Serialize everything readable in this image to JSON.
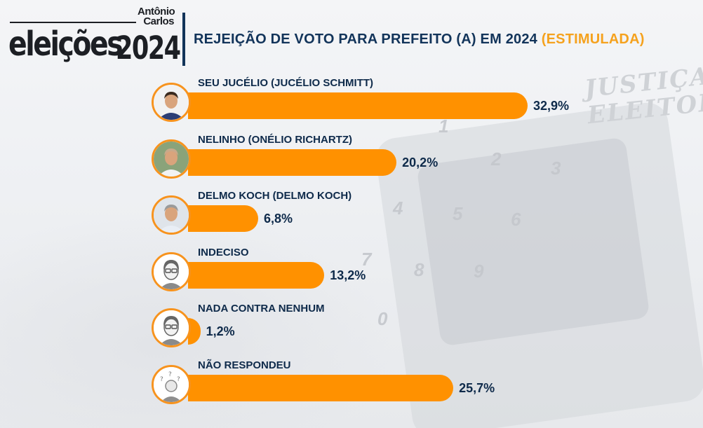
{
  "header": {
    "logo_word": "eleições",
    "logo_year": "2024",
    "logo_author": "Antônio Carlos",
    "title": "REJEIÇÃO DE VOTO PARA PREFEITO (A) EM 2024",
    "title_accent": "(ESTIMULADA)"
  },
  "background_sign": "JUSTIÇA ELEITORAL",
  "background_digits": [
    "1",
    "2",
    "3",
    "4",
    "5",
    "6",
    "7",
    "8",
    "9",
    "0"
  ],
  "colors": {
    "bar": "#ff9100",
    "ring": "#f7931e",
    "text": "#0e2a4a",
    "title": "#12345a",
    "accent": "#f5a21e"
  },
  "chart_data": {
    "type": "bar",
    "orientation": "horizontal",
    "title": "REJEIÇÃO DE VOTO PARA PREFEITO (A) EM 2024 (ESTIMULADA)",
    "unit": "%",
    "xlim": [
      0,
      35
    ],
    "categories": [
      "SEU JUCÉLIO (JUCÉLIO SCHMITT)",
      "NELINHO (ONÉLIO RICHARTZ)",
      "DELMO KOCH (DELMO KOCH)",
      "INDECISO",
      "NADA CONTRA NENHUM",
      "NÃO RESPONDEU"
    ],
    "values": [
      32.9,
      20.2,
      6.8,
      13.2,
      1.2,
      25.7
    ],
    "value_labels": [
      "32,9%",
      "20,2%",
      "6,8%",
      "13,2%",
      "1,2%",
      "25,7%"
    ],
    "avatars": [
      "photo-man-dark-hair-icon",
      "photo-man-bald-icon",
      "photo-man-grey-hair-icon",
      "person-glasses-icon",
      "person-glasses-icon",
      "person-question-marks-icon"
    ]
  }
}
